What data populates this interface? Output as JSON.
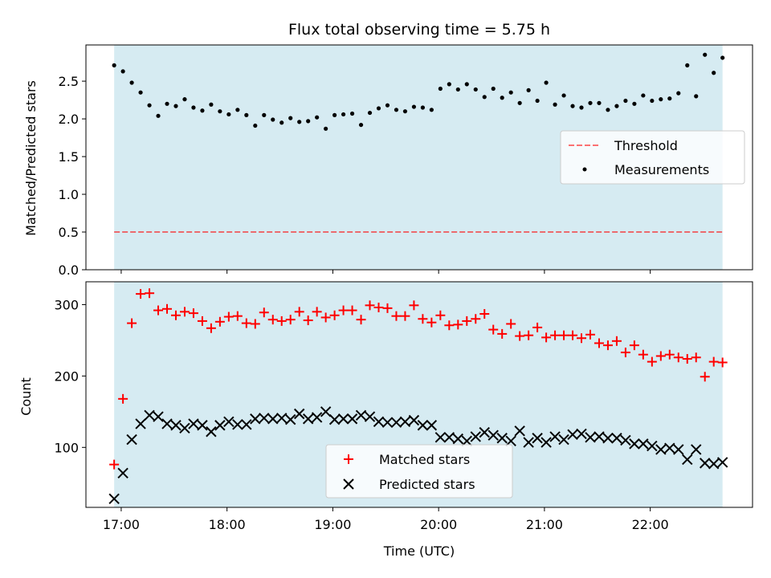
{
  "chart_data": [
    {
      "type": "scatter",
      "title": "Flux total observing time = 5.75 h",
      "ylabel": "Matched/Predicted stars",
      "ylim": [
        0,
        2.98
      ],
      "xlim": [
        "16:40",
        "22:58"
      ],
      "yticks": [
        "0.0",
        "0.5",
        "1.0",
        "1.5",
        "2.0",
        "2.5"
      ],
      "shaded_span": [
        "16:56",
        "22:41"
      ],
      "threshold": 0.5,
      "legend": {
        "placement": "center-right",
        "threshold_label": "Threshold",
        "measurements_label": "Measurements"
      },
      "series": [
        {
          "name": "Measurements",
          "color": "#000000",
          "x": [
            "16:56",
            "17:01",
            "17:06",
            "17:11",
            "17:16",
            "17:21",
            "17:26",
            "17:31",
            "17:36",
            "17:41",
            "17:46",
            "17:51",
            "17:56",
            "18:01",
            "18:06",
            "18:11",
            "18:16",
            "18:21",
            "18:26",
            "18:31",
            "18:36",
            "18:41",
            "18:46",
            "18:51",
            "18:56",
            "19:01",
            "19:06",
            "19:11",
            "19:16",
            "19:21",
            "19:26",
            "19:31",
            "19:36",
            "19:41",
            "19:46",
            "19:51",
            "19:56",
            "20:01",
            "20:06",
            "20:11",
            "20:16",
            "20:21",
            "20:26",
            "20:31",
            "20:36",
            "20:41",
            "20:46",
            "20:51",
            "20:56",
            "21:01",
            "21:06",
            "21:11",
            "21:16",
            "21:21",
            "21:26",
            "21:31",
            "21:36",
            "21:41",
            "21:46",
            "21:51",
            "21:56",
            "22:01",
            "22:06",
            "22:11",
            "22:16",
            "22:21",
            "22:26",
            "22:31",
            "22:36",
            "22:41"
          ],
          "y": [
            2.71,
            2.63,
            2.48,
            2.35,
            2.18,
            2.04,
            2.2,
            2.17,
            2.26,
            2.15,
            2.11,
            2.19,
            2.1,
            2.06,
            2.12,
            2.05,
            1.91,
            2.05,
            1.99,
            1.95,
            2.01,
            1.96,
            1.97,
            2.02,
            1.87,
            2.05,
            2.06,
            2.07,
            1.92,
            2.08,
            2.14,
            2.18,
            2.12,
            2.1,
            2.16,
            2.15,
            2.12,
            2.4,
            2.46,
            2.39,
            2.46,
            2.39,
            2.29,
            2.4,
            2.28,
            2.35,
            2.21,
            2.38,
            2.24,
            2.48,
            2.19,
            2.31,
            2.17,
            2.15,
            2.21,
            2.21,
            2.12,
            2.17,
            2.24,
            2.2,
            2.31,
            2.24,
            2.26,
            2.27,
            2.34,
            2.71,
            2.3,
            2.85,
            2.61,
            2.81
          ]
        }
      ]
    },
    {
      "type": "scatter",
      "xlabel": "Time (UTC)",
      "ylabel": "Count",
      "ylim": [
        16,
        332
      ],
      "xlim": [
        "16:40",
        "22:58"
      ],
      "xticks": [
        "17:00",
        "18:00",
        "19:00",
        "20:00",
        "21:00",
        "22:00"
      ],
      "yticks": [
        "100",
        "200",
        "300"
      ],
      "shaded_span": [
        "16:56",
        "22:41"
      ],
      "legend": {
        "placement": "bottom-center"
      },
      "series": [
        {
          "name": "Matched stars",
          "color": "#ff0000",
          "marker": "+",
          "x": [
            "16:56",
            "17:01",
            "17:06",
            "17:11",
            "17:16",
            "17:21",
            "17:26",
            "17:31",
            "17:36",
            "17:41",
            "17:46",
            "17:51",
            "17:56",
            "18:01",
            "18:06",
            "18:11",
            "18:16",
            "18:21",
            "18:26",
            "18:31",
            "18:36",
            "18:41",
            "18:46",
            "18:51",
            "18:56",
            "19:01",
            "19:06",
            "19:11",
            "19:16",
            "19:21",
            "19:26",
            "19:31",
            "19:36",
            "19:41",
            "19:46",
            "19:51",
            "19:56",
            "20:01",
            "20:06",
            "20:11",
            "20:16",
            "20:21",
            "20:26",
            "20:31",
            "20:36",
            "20:41",
            "20:46",
            "20:51",
            "20:56",
            "21:01",
            "21:06",
            "21:11",
            "21:16",
            "21:21",
            "21:26",
            "21:31",
            "21:36",
            "21:41",
            "21:46",
            "21:51",
            "21:56",
            "22:01",
            "22:06",
            "22:11",
            "22:16",
            "22:21",
            "22:26",
            "22:31",
            "22:36",
            "22:41"
          ],
          "y": [
            76,
            168,
            274,
            315,
            316,
            292,
            294,
            285,
            290,
            288,
            277,
            267,
            276,
            283,
            284,
            274,
            273,
            289,
            279,
            277,
            279,
            290,
            278,
            290,
            282,
            285,
            292,
            292,
            279,
            299,
            296,
            295,
            284,
            284,
            299,
            280,
            275,
            285,
            271,
            272,
            277,
            280,
            287,
            265,
            259,
            273,
            256,
            257,
            268,
            254,
            257,
            257,
            257,
            253,
            258,
            246,
            243,
            249,
            233,
            243,
            230,
            220,
            228,
            230,
            226,
            224,
            226,
            199,
            220,
            219
          ]
        },
        {
          "name": "Predicted stars",
          "color": "#000000",
          "marker": "x",
          "x": [
            "16:56",
            "17:01",
            "17:06",
            "17:11",
            "17:16",
            "17:21",
            "17:26",
            "17:31",
            "17:36",
            "17:41",
            "17:46",
            "17:51",
            "17:56",
            "18:01",
            "18:06",
            "18:11",
            "18:16",
            "18:21",
            "18:26",
            "18:31",
            "18:36",
            "18:41",
            "18:46",
            "18:51",
            "18:56",
            "19:01",
            "19:06",
            "19:11",
            "19:16",
            "19:21",
            "19:26",
            "19:31",
            "19:36",
            "19:41",
            "19:46",
            "19:51",
            "19:56",
            "20:01",
            "20:06",
            "20:11",
            "20:16",
            "20:21",
            "20:26",
            "20:31",
            "20:36",
            "20:41",
            "20:46",
            "20:51",
            "20:56",
            "21:01",
            "21:06",
            "21:11",
            "21:16",
            "21:21",
            "21:26",
            "21:31",
            "21:36",
            "21:41",
            "21:46",
            "21:51",
            "21:56",
            "22:01",
            "22:06",
            "22:11",
            "22:16",
            "22:21",
            "22:26",
            "22:31",
            "22:36",
            "22:41"
          ],
          "y": [
            28,
            64,
            111,
            133,
            145,
            143,
            133,
            131,
            127,
            133,
            131,
            122,
            131,
            136,
            132,
            132,
            140,
            141,
            140,
            141,
            139,
            147,
            140,
            142,
            150,
            139,
            140,
            140,
            145,
            143,
            136,
            135,
            135,
            136,
            138,
            131,
            131,
            114,
            114,
            112,
            109,
            115,
            121,
            117,
            113,
            109,
            123,
            107,
            113,
            107,
            115,
            111,
            118,
            119,
            114,
            115,
            113,
            113,
            110,
            105,
            105,
            102,
            97,
            99,
            97,
            83,
            97,
            78,
            77,
            79
          ]
        }
      ]
    }
  ]
}
